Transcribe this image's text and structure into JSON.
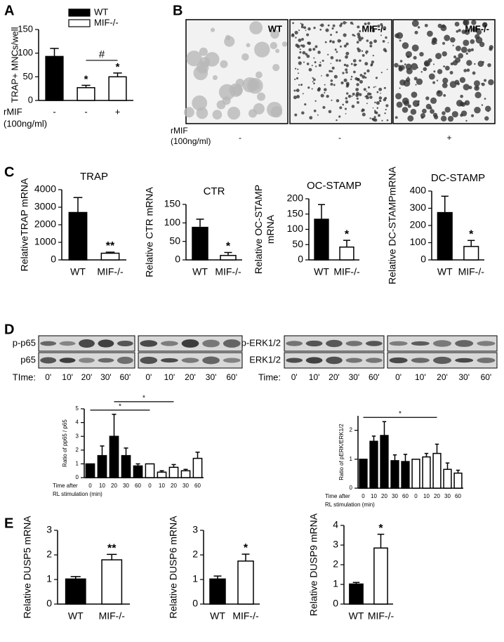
{
  "panel_labels": [
    "A",
    "B",
    "C",
    "D",
    "E"
  ],
  "micrographs": {
    "labels": [
      "WT",
      "MIF-/-",
      "MIF-/-"
    ],
    "row_label": [
      "rMIF",
      "(100ng/ml)"
    ],
    "treatment": [
      "-",
      "-",
      "+"
    ]
  },
  "blots": [
    {
      "rows": [
        "p-p65",
        "p65"
      ],
      "time_label": "TIme:",
      "times": [
        "0'",
        "10'",
        "20'",
        "30'",
        "60'",
        "0'",
        "10'",
        "20'",
        "30'",
        "60'"
      ]
    },
    {
      "rows": [
        "p-ERK1/2",
        "ERK1/2"
      ],
      "time_label": "Time:",
      "times": [
        "0'",
        "10'",
        "20'",
        "30'",
        "60'",
        "0'",
        "10'",
        "20'",
        "30'",
        "60'"
      ]
    }
  ],
  "chart_data": [
    {
      "type": "bar",
      "ylabel": "TRAP+ MNCs/well",
      "categories": [
        "-",
        "-",
        "+"
      ],
      "xlabel": [
        "rMIF",
        "(100ng/ml)"
      ],
      "values": [
        93,
        27,
        50
      ],
      "errors": [
        17,
        5,
        8
      ],
      "colors": [
        "#000000",
        "#ffffff",
        "#ffffff"
      ],
      "value_annotations": [
        null,
        "*",
        "*"
      ],
      "brackets": [
        {
          "from": 1,
          "to": 2,
          "text": "#"
        }
      ],
      "legend": [
        {
          "name": "WT",
          "color": "#000000"
        },
        {
          "name": "MIF-/-",
          "color": "#ffffff"
        }
      ],
      "ylim": [
        0,
        150
      ],
      "yticks": [
        0,
        50,
        100,
        150
      ]
    },
    {
      "type": "bar",
      "title": "TRAP",
      "ylabel": "RelativeTRAP mRNA",
      "categories": [
        "WT",
        "MIF-/-"
      ],
      "values": [
        2700,
        380
      ],
      "errors": [
        850,
        60
      ],
      "colors": [
        "#000000",
        "#ffffff"
      ],
      "value_annotations": [
        null,
        "**"
      ],
      "ylim": [
        0,
        4000
      ],
      "yticks": [
        0,
        1000,
        2000,
        3000,
        4000
      ]
    },
    {
      "type": "bar",
      "title": "CTR",
      "ylabel": "Relative CTR mRNA",
      "categories": [
        "WT",
        "MIF-/-"
      ],
      "values": [
        88,
        12
      ],
      "errors": [
        22,
        8
      ],
      "colors": [
        "#000000",
        "#ffffff"
      ],
      "value_annotations": [
        null,
        "*"
      ],
      "ylim": [
        0,
        150
      ],
      "yticks": [
        0,
        50,
        100,
        150
      ]
    },
    {
      "type": "bar",
      "title": "OC-STAMP",
      "ylabel": [
        "Relative OC-STAMP",
        "mRNA"
      ],
      "categories": [
        "WT",
        "MIF-/-"
      ],
      "values": [
        133,
        42
      ],
      "errors": [
        48,
        22
      ],
      "colors": [
        "#000000",
        "#ffffff"
      ],
      "value_annotations": [
        null,
        "*"
      ],
      "ylim": [
        0,
        200
      ],
      "yticks": [
        0,
        50,
        100,
        150,
        200
      ]
    },
    {
      "type": "bar",
      "title": "DC-STAMP",
      "ylabel": "Relative DC-STAMPmRNA",
      "categories": [
        "WT",
        "MIF-/-"
      ],
      "values": [
        275,
        78
      ],
      "errors": [
        95,
        35
      ],
      "colors": [
        "#000000",
        "#ffffff"
      ],
      "value_annotations": [
        null,
        "*"
      ],
      "ylim": [
        0,
        400
      ],
      "yticks": [
        0,
        100,
        200,
        300,
        400
      ]
    },
    {
      "type": "bar",
      "ylabel": "Ratio of pp65 / p65",
      "categories": [
        "0",
        "10",
        "20",
        "30",
        "60",
        "0",
        "10",
        "20",
        "30",
        "60"
      ],
      "xlabel": [
        "Time after",
        "RL stimulation (min)"
      ],
      "values": [
        1,
        1.6,
        3.0,
        1.6,
        0.85,
        1.0,
        0.4,
        0.75,
        0.5,
        1.4
      ],
      "errors": [
        0,
        0.7,
        1.6,
        0.55,
        0.15,
        0,
        0.1,
        0.2,
        0.1,
        0.45
      ],
      "colors": [
        "#000000",
        "#000000",
        "#000000",
        "#000000",
        "#000000",
        "#ffffff",
        "#ffffff",
        "#ffffff",
        "#ffffff",
        "#ffffff"
      ],
      "brackets": [
        {
          "from": 0,
          "to": 5,
          "text": "*"
        },
        {
          "from": 2,
          "to": 7,
          "text": "*"
        }
      ],
      "ylim": [
        0,
        5
      ],
      "yticks": [
        0,
        1,
        2,
        3,
        4,
        5
      ]
    },
    {
      "type": "bar",
      "ylabel": "Ratio of pERK/ERK1/2",
      "categories": [
        "0",
        "10",
        "20",
        "30",
        "60",
        "0",
        "10",
        "20",
        "30",
        "60"
      ],
      "xlabel": [
        "Time after",
        "RL stimulation (min)"
      ],
      "values": [
        1,
        1.62,
        1.82,
        0.95,
        0.92,
        1.0,
        1.08,
        1.2,
        0.65,
        0.52
      ],
      "errors": [
        0,
        0.18,
        0.48,
        0.2,
        0.25,
        0,
        0.12,
        0.32,
        0.22,
        0.1
      ],
      "colors": [
        "#000000",
        "#000000",
        "#000000",
        "#000000",
        "#000000",
        "#ffffff",
        "#ffffff",
        "#ffffff",
        "#ffffff",
        "#ffffff"
      ],
      "brackets": [
        {
          "from": 0,
          "to": 7,
          "text": "*"
        }
      ],
      "ylim": [
        0,
        2.5
      ],
      "yticks": [
        0,
        1,
        2
      ]
    },
    {
      "type": "bar",
      "ylabel": "Relative DUSP5 mRNA",
      "categories": [
        "WT",
        "MIF-/-"
      ],
      "values": [
        1.02,
        1.8
      ],
      "errors": [
        0.1,
        0.22
      ],
      "colors": [
        "#000000",
        "#ffffff"
      ],
      "value_annotations": [
        null,
        "**"
      ],
      "ylim": [
        0,
        3
      ],
      "yticks": [
        0,
        1,
        2,
        3
      ]
    },
    {
      "type": "bar",
      "ylabel": "Relative DUSP6 mRNA",
      "categories": [
        "WT",
        "MIF-/-"
      ],
      "values": [
        1.02,
        1.75
      ],
      "errors": [
        0.12,
        0.28
      ],
      "colors": [
        "#000000",
        "#ffffff"
      ],
      "value_annotations": [
        null,
        "*"
      ],
      "ylim": [
        0,
        3
      ],
      "yticks": [
        0,
        1,
        2,
        3
      ]
    },
    {
      "type": "bar",
      "ylabel": "Relative DUSP9 mRNA",
      "categories": [
        "WT",
        "MIF-/-"
      ],
      "values": [
        1.02,
        2.85
      ],
      "errors": [
        0.08,
        0.7
      ],
      "colors": [
        "#000000",
        "#ffffff"
      ],
      "value_annotations": [
        null,
        "*"
      ],
      "ylim": [
        0,
        4
      ],
      "yticks": [
        0,
        1,
        2,
        3,
        4
      ]
    }
  ]
}
